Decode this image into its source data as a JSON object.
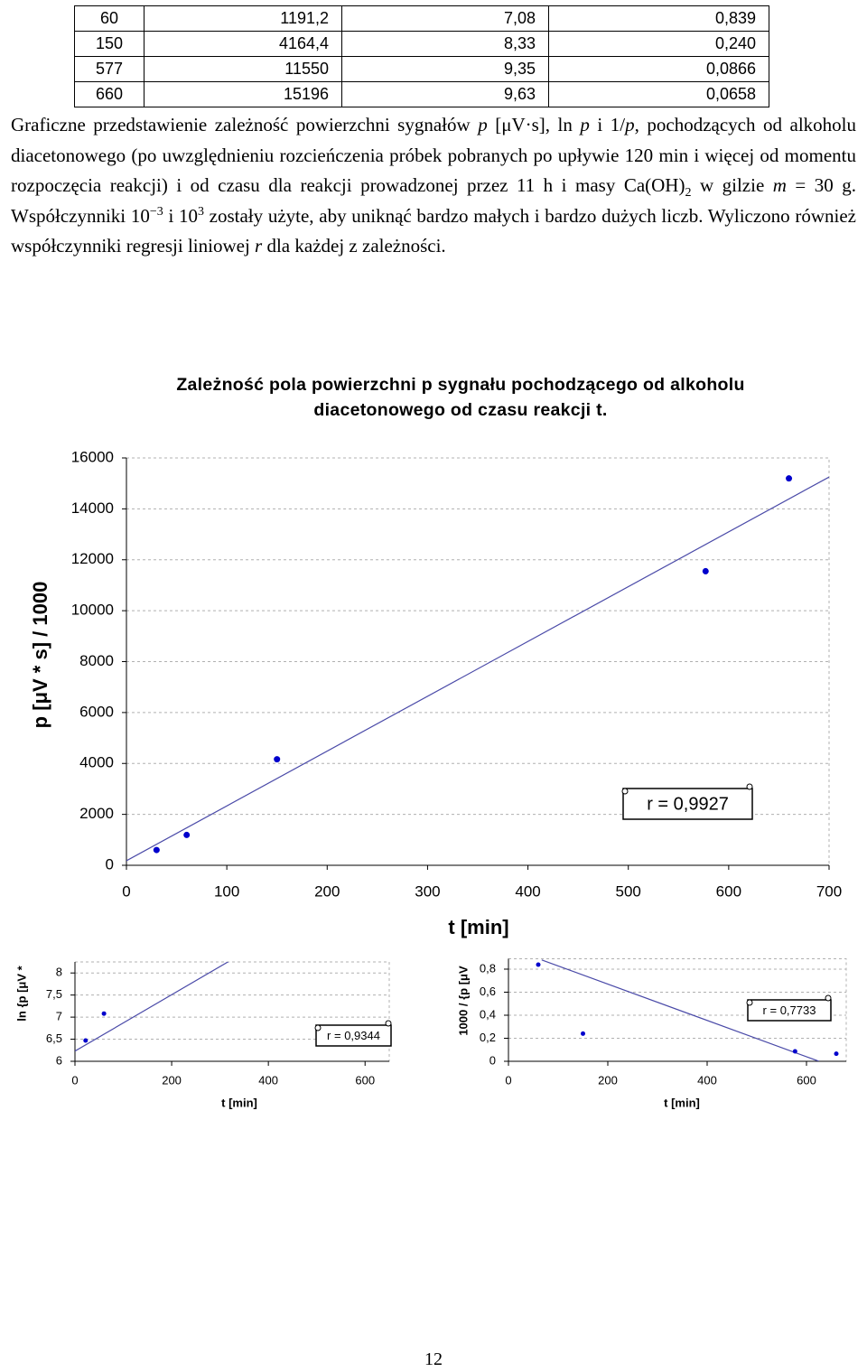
{
  "table": {
    "rows": [
      [
        "60",
        "1191,2",
        "7,08",
        "0,839"
      ],
      [
        "150",
        "4164,4",
        "8,33",
        "0,240"
      ],
      [
        "577",
        "11550",
        "9,35",
        "0,0866"
      ],
      [
        "660",
        "15196",
        "9,63",
        "0,0658"
      ]
    ]
  },
  "paragraph": {
    "parts": [
      "Graficzne przedstawienie zależność powierzchni sygnałów ",
      "p",
      " [μV·s], ln ",
      "p",
      " i 1/",
      "p",
      ", pochodzących od alkoholu diacetonowego (po uwzględnieniu rozcieńczenia próbek pobranych po upływie 120 min i więcej od momentu rozpoczęcia reakcji) i od czasu dla reakcji prowadzonej przez 11 h i masy Ca(OH)",
      "2",
      " w gilzie ",
      "m",
      " = 30 g. Współczynniki 10",
      "−3",
      " i 10",
      "3",
      " zostały użyte, aby uniknąć bardzo małych i bardzo dużych liczb. Wyliczono również współczynniki regresji liniowej ",
      "r",
      " dla każdej z zależności."
    ]
  },
  "chart_data": [
    {
      "type": "scatter",
      "title": "Zależność pola powierzchni p sygnału pochodzącego od alkoholu diacetonowego od czasu reakcji t.",
      "x_label": "t [min]",
      "y_label": "p [μV * s] / 1000",
      "x": [
        30,
        60,
        150,
        577,
        660
      ],
      "values": [
        600,
        1191,
        4164,
        11550,
        15196
      ],
      "color": "#0000cc",
      "trendline": {
        "x": [
          0,
          700
        ],
        "y": [
          180,
          15250
        ],
        "color": "#4a4aa8"
      },
      "xlim": [
        0,
        700
      ],
      "xticks": [
        0,
        100,
        200,
        300,
        400,
        500,
        600,
        700
      ],
      "ylim": [
        0,
        16000
      ],
      "yticks": [
        0,
        2000,
        4000,
        6000,
        8000,
        10000,
        12000,
        14000,
        16000
      ],
      "grid": true,
      "annotation": "r = 0,9927"
    },
    {
      "type": "scatter",
      "x_label": "t [min]",
      "y_label": "ln {p [μV *",
      "x": [
        22,
        60
      ],
      "values": [
        6.47,
        7.08
      ],
      "color": "#0000cc",
      "trendline": {
        "x": [
          0,
          321
        ],
        "y": [
          6.23,
          8.28
        ],
        "color": "#4a4aa8"
      },
      "xlim": [
        0,
        650
      ],
      "xticks": [
        0,
        200,
        400,
        600
      ],
      "ylim": [
        6,
        8.25
      ],
      "yticks": [
        6,
        {
          "value": 6.5,
          "label": "6,5"
        },
        7,
        {
          "value": 7.5,
          "label": "7,5"
        },
        8
      ],
      "grid": true,
      "annotation": "r = 0,9344"
    },
    {
      "type": "scatter",
      "x_label": "t [min]",
      "y_label": "1000 / {p [μV",
      "x": [
        60,
        150,
        577,
        660
      ],
      "values": [
        0.839,
        0.24,
        0.0866,
        0.0658
      ],
      "color": "#0000cc",
      "trendline": {
        "x": [
          67,
          625
        ],
        "y": [
          0.88,
          0
        ],
        "color": "#4a4aa8"
      },
      "xlim": [
        0,
        680
      ],
      "xticks": [
        0,
        200,
        400,
        600
      ],
      "ylim": [
        0,
        0.89
      ],
      "yticks": [
        0,
        {
          "value": 0.2,
          "label": "0,2"
        },
        {
          "value": 0.4,
          "label": "0,4"
        },
        {
          "value": 0.6,
          "label": "0,6"
        },
        {
          "value": 0.8,
          "label": "0,8"
        }
      ],
      "grid": true,
      "annotation": "r = 0,7733"
    }
  ],
  "page_number": "12"
}
